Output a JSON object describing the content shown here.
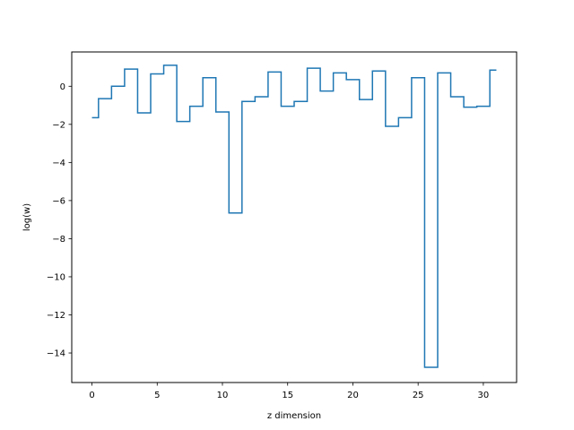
{
  "chart_data": {
    "type": "line",
    "drawstyle": "steps-mid",
    "xlabel": "z dimension",
    "ylabel": "log(w)",
    "xlim": [
      -1.55,
      32.55
    ],
    "ylim": [
      -15.55,
      1.8
    ],
    "xticks": [
      0,
      5,
      10,
      15,
      20,
      25,
      30
    ],
    "xtick_labels": [
      "0",
      "5",
      "10",
      "15",
      "20",
      "25",
      "30"
    ],
    "yticks": [
      0,
      -2,
      -4,
      -6,
      -8,
      -10,
      -12,
      -14
    ],
    "ytick_labels": [
      "0",
      "−2",
      "−4",
      "−6",
      "−8",
      "−10",
      "−12",
      "−14"
    ],
    "grid": false,
    "series": [
      {
        "color": "#1f77b4",
        "x": [
          0,
          1,
          2,
          3,
          4,
          5,
          6,
          7,
          8,
          9,
          10,
          11,
          12,
          13,
          14,
          15,
          16,
          17,
          18,
          19,
          20,
          21,
          22,
          23,
          24,
          25,
          26,
          27,
          28,
          29,
          30,
          31
        ],
        "y": [
          -1.65,
          -0.65,
          0.0,
          0.9,
          -1.4,
          0.65,
          1.1,
          -1.85,
          -1.05,
          0.45,
          -1.35,
          -6.65,
          -0.8,
          -0.55,
          0.75,
          -1.05,
          -0.8,
          0.95,
          -0.25,
          0.7,
          0.35,
          -0.7,
          0.8,
          -2.1,
          -1.65,
          0.45,
          -14.75,
          0.7,
          -0.55,
          -1.1,
          -1.05,
          0.85
        ]
      }
    ]
  }
}
